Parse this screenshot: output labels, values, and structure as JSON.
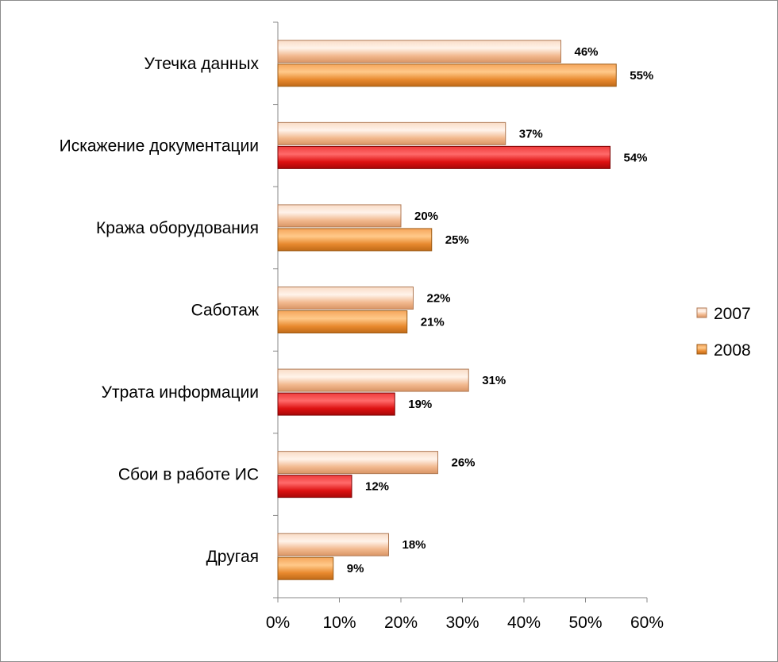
{
  "chart_data": {
    "type": "bar",
    "orientation": "horizontal",
    "categories": [
      "Утечка данных",
      "Искажение документации",
      "Кража оборудования",
      "Саботаж",
      "Утрата информации",
      "Сбои в работе ИС",
      "Другая"
    ],
    "series": [
      {
        "name": "2007",
        "values": [
          46,
          37,
          20,
          22,
          31,
          26,
          18
        ],
        "color": "#f2b98f",
        "value_labels": [
          "46%",
          "37%",
          "20%",
          "22%",
          "31%",
          "26%",
          "18%"
        ]
      },
      {
        "name": "2008",
        "values": [
          55,
          54,
          25,
          21,
          19,
          12,
          9
        ],
        "color": "#e8892e",
        "highlight_color": "#dd1111",
        "highlighted": [
          false,
          true,
          false,
          false,
          true,
          true,
          false
        ],
        "value_labels": [
          "55%",
          "54%",
          "25%",
          "21%",
          "19%",
          "12%",
          "9%"
        ]
      }
    ],
    "xlim": [
      0,
      60
    ],
    "x_ticks": [
      0,
      10,
      20,
      30,
      40,
      50,
      60
    ],
    "x_tick_labels": [
      "0%",
      "10%",
      "20%",
      "30%",
      "40%",
      "50%",
      "60%"
    ],
    "grid": false,
    "legend_position": "right"
  }
}
